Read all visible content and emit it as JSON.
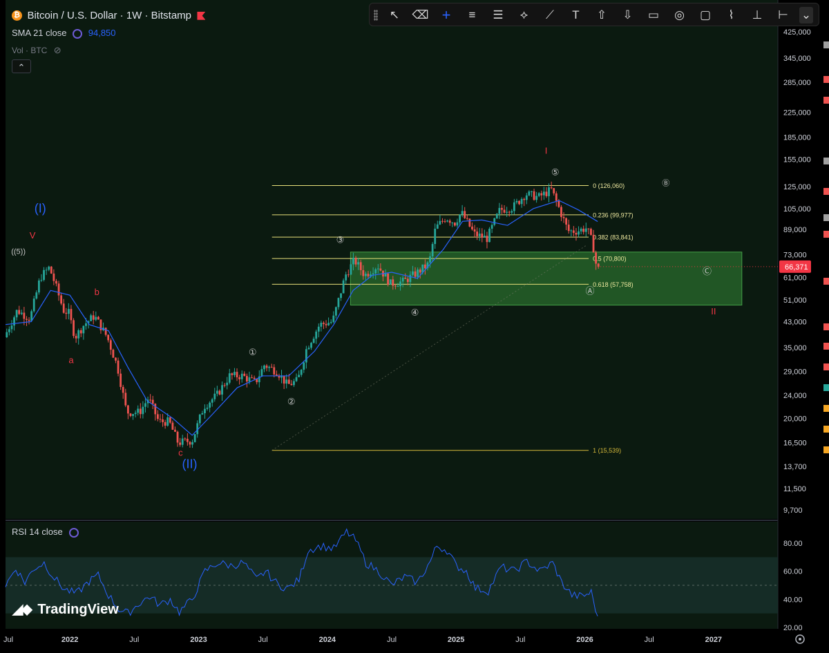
{
  "header": {
    "symbol_title": "Bitcoin / U.S. Dollar · 1W · Bitstamp",
    "sma_label": "SMA 21 close",
    "sma_value": "94,850",
    "vol_label": "Vol · BTC",
    "collapse_glyph": "⌃"
  },
  "toolbar": {
    "tools": [
      {
        "name": "cursor",
        "glyph": "↖"
      },
      {
        "name": "eraser",
        "glyph": "⌫"
      },
      {
        "name": "crosshair",
        "glyph": "+"
      },
      {
        "name": "parallel-channel",
        "glyph": "≡"
      },
      {
        "name": "fib-retracement",
        "glyph": "☰"
      },
      {
        "name": "pattern",
        "glyph": "⟡"
      },
      {
        "name": "trend-line",
        "glyph": "⟋"
      },
      {
        "name": "text",
        "glyph": "T"
      },
      {
        "name": "arrow-up",
        "glyph": "⇧"
      },
      {
        "name": "arrow-down",
        "glyph": "⇩"
      },
      {
        "name": "callout",
        "glyph": "▭"
      },
      {
        "name": "circle",
        "glyph": "◎"
      },
      {
        "name": "rectangle",
        "glyph": "▢"
      },
      {
        "name": "path",
        "glyph": "⌇"
      },
      {
        "name": "price-range",
        "glyph": "⊥"
      },
      {
        "name": "date-range",
        "glyph": "⊢"
      },
      {
        "name": "more",
        "glyph": "⌄"
      }
    ]
  },
  "colors": {
    "bg": "#0b1a10",
    "up": "#26a69a",
    "down": "#ef5350",
    "sma": "#2962ff",
    "fib": "#e8e07a",
    "fib_last": "#d4b83a",
    "zone": "#2e7d32",
    "wave_red": "#f23645",
    "wave_blue": "#2962ff",
    "rsi": "#2962ff",
    "current_price": "#f23645"
  },
  "chart_data": {
    "type": "candlestick",
    "title": "Bitcoin / U.S. Dollar · 1W · Bitstamp",
    "y_scale": "log",
    "y_axis_ticks": [
      425000,
      345000,
      285000,
      225000,
      185000,
      155000,
      125000,
      105000,
      89000,
      73000,
      61000,
      51000,
      43000,
      35000,
      29000,
      24000,
      20000,
      16500,
      13700,
      11500,
      9700
    ],
    "y_axis_labels": [
      "425,000",
      "345,000",
      "285,000",
      "225,000",
      "185,000",
      "155,000",
      "125,000",
      "105,000",
      "89,000",
      "73,000",
      "61,000",
      "51,000",
      "43,000",
      "35,000",
      "29,000",
      "24,000",
      "20,000",
      "16,500",
      "13,700",
      "11,500",
      "9,700"
    ],
    "x_axis_labels": [
      "Jul",
      "2022",
      "Jul",
      "2023",
      "Jul",
      "2024",
      "Jul",
      "2025",
      "Jul",
      "2026",
      "Jul",
      "2027"
    ],
    "x_range": [
      2021.5,
      2027.5
    ],
    "current_price": 66371,
    "current_price_label": "66,371",
    "price_path": [
      [
        2021.5,
        38000
      ],
      [
        2021.6,
        47000
      ],
      [
        2021.7,
        44000
      ],
      [
        2021.78,
        61000
      ],
      [
        2021.85,
        66000
      ],
      [
        2021.9,
        57000
      ],
      [
        2021.96,
        47000
      ],
      [
        2022.0,
        46000
      ],
      [
        2022.05,
        38000
      ],
      [
        2022.12,
        42000
      ],
      [
        2022.2,
        45000
      ],
      [
        2022.3,
        38000
      ],
      [
        2022.38,
        30000
      ],
      [
        2022.45,
        21000
      ],
      [
        2022.55,
        21000
      ],
      [
        2022.62,
        23500
      ],
      [
        2022.7,
        19500
      ],
      [
        2022.78,
        19500
      ],
      [
        2022.85,
        16500
      ],
      [
        2022.96,
        16800
      ],
      [
        2023.05,
        22000
      ],
      [
        2023.15,
        24000
      ],
      [
        2023.25,
        28000
      ],
      [
        2023.35,
        28000
      ],
      [
        2023.45,
        26500
      ],
      [
        2023.52,
        30500
      ],
      [
        2023.62,
        29000
      ],
      [
        2023.7,
        26000
      ],
      [
        2023.78,
        27000
      ],
      [
        2023.85,
        35000
      ],
      [
        2023.95,
        42000
      ],
      [
        2024.05,
        43000
      ],
      [
        2024.15,
        62000
      ],
      [
        2024.22,
        70000
      ],
      [
        2024.3,
        62000
      ],
      [
        2024.4,
        67000
      ],
      [
        2024.5,
        58000
      ],
      [
        2024.6,
        59000
      ],
      [
        2024.7,
        63000
      ],
      [
        2024.8,
        68000
      ],
      [
        2024.85,
        90000
      ],
      [
        2024.93,
        98000
      ],
      [
        2025.0,
        94000
      ],
      [
        2025.05,
        102000
      ],
      [
        2025.15,
        86000
      ],
      [
        2025.25,
        83000
      ],
      [
        2025.35,
        104000
      ],
      [
        2025.45,
        106000
      ],
      [
        2025.55,
        118000
      ],
      [
        2025.65,
        115000
      ],
      [
        2025.75,
        122000
      ],
      [
        2025.8,
        108000
      ],
      [
        2025.88,
        88000
      ],
      [
        2025.95,
        88000
      ],
      [
        2026.02,
        90000
      ],
      [
        2026.05,
        85000
      ],
      [
        2026.08,
        76000
      ],
      [
        2026.1,
        66371
      ]
    ],
    "sma21_path": [
      [
        2021.5,
        42000
      ],
      [
        2021.7,
        43000
      ],
      [
        2021.85,
        55000
      ],
      [
        2022.0,
        53000
      ],
      [
        2022.15,
        42000
      ],
      [
        2022.3,
        40000
      ],
      [
        2022.45,
        30000
      ],
      [
        2022.6,
        23000
      ],
      [
        2022.8,
        20000
      ],
      [
        2022.95,
        17500
      ],
      [
        2023.1,
        20500
      ],
      [
        2023.3,
        25500
      ],
      [
        2023.5,
        28000
      ],
      [
        2023.7,
        28000
      ],
      [
        2023.9,
        34000
      ],
      [
        2024.05,
        42000
      ],
      [
        2024.2,
        55000
      ],
      [
        2024.35,
        62000
      ],
      [
        2024.5,
        63500
      ],
      [
        2024.7,
        60500
      ],
      [
        2024.9,
        76000
      ],
      [
        2025.05,
        95000
      ],
      [
        2025.2,
        96000
      ],
      [
        2025.4,
        92000
      ],
      [
        2025.6,
        105000
      ],
      [
        2025.8,
        112000
      ],
      [
        2025.95,
        104000
      ],
      [
        2026.1,
        94850
      ]
    ],
    "fib_levels": [
      {
        "ratio_label": "0 (126,060)",
        "price": 126060
      },
      {
        "ratio_label": "0.236 (99,977)",
        "price": 99977
      },
      {
        "ratio_label": "0.382 (83,841)",
        "price": 83841
      },
      {
        "ratio_label": "0.5 (70,800)",
        "price": 70800
      },
      {
        "ratio_label": "0.618 (57,758)",
        "price": 57758
      },
      {
        "ratio_label": "1 (15,539)",
        "price": 15539
      }
    ],
    "fib_range_x": [
      2023.57,
      2026.03
    ],
    "support_zone": {
      "x": [
        2024.18,
        2027.22
      ],
      "price": [
        49000,
        74500
      ]
    },
    "wave_labels": [
      {
        "text": "(I)",
        "x": 2021.77,
        "price": 102000,
        "color": "blue",
        "size": "lg"
      },
      {
        "text": "V",
        "x": 2021.71,
        "price": 83000,
        "color": "red",
        "size": "md"
      },
      {
        "text": "((5))",
        "x": 2021.6,
        "price": 73500,
        "color": "gray",
        "size": "sm"
      },
      {
        "text": "b",
        "x": 2022.21,
        "price": 53000,
        "color": "red",
        "size": "md"
      },
      {
        "text": "a",
        "x": 2022.01,
        "price": 31000,
        "color": "red",
        "size": "md"
      },
      {
        "text": "c",
        "x": 2022.86,
        "price": 14900,
        "color": "red",
        "size": "md"
      },
      {
        "text": "(II)",
        "x": 2022.93,
        "price": 13500,
        "color": "blue",
        "size": "lg"
      },
      {
        "text": "①",
        "x": 2023.42,
        "price": 33000,
        "color": "gray",
        "size": "md"
      },
      {
        "text": "②",
        "x": 2023.72,
        "price": 22300,
        "color": "gray",
        "size": "md"
      },
      {
        "text": "③",
        "x": 2024.1,
        "price": 80000,
        "color": "gray",
        "size": "md"
      },
      {
        "text": "④",
        "x": 2024.68,
        "price": 45200,
        "color": "gray",
        "size": "md"
      },
      {
        "text": "⑤",
        "x": 2025.77,
        "price": 137000,
        "color": "gray",
        "size": "md"
      },
      {
        "text": "I",
        "x": 2025.7,
        "price": 162000,
        "color": "red",
        "size": "md"
      },
      {
        "text": "Ⓑ",
        "x": 2026.63,
        "price": 126060,
        "color": "gray",
        "size": "sm"
      },
      {
        "text": "Ⓒ",
        "x": 2026.95,
        "price": 62500,
        "color": "gray",
        "size": "md"
      },
      {
        "text": "Ⓐ",
        "x": 2026.04,
        "price": 53500,
        "color": "gray",
        "size": "md"
      },
      {
        "text": "II",
        "x": 2027.0,
        "price": 45500,
        "color": "red",
        "size": "md"
      }
    ],
    "rsi": {
      "label": "RSI 14 close",
      "y_axis_labels": [
        "80.00",
        "60.00",
        "40.00",
        "20.00"
      ],
      "y_ticks": [
        80,
        60,
        40,
        20
      ],
      "band": [
        30,
        70
      ],
      "path": [
        [
          2021.5,
          50
        ],
        [
          2021.58,
          62
        ],
        [
          2021.65,
          52
        ],
        [
          2021.72,
          62
        ],
        [
          2021.8,
          66
        ],
        [
          2021.88,
          55
        ],
        [
          2021.96,
          47
        ],
        [
          2022.05,
          44
        ],
        [
          2022.15,
          53
        ],
        [
          2022.22,
          57
        ],
        [
          2022.3,
          43
        ],
        [
          2022.38,
          33
        ],
        [
          2022.45,
          30
        ],
        [
          2022.55,
          38
        ],
        [
          2022.62,
          42
        ],
        [
          2022.7,
          36
        ],
        [
          2022.78,
          40
        ],
        [
          2022.85,
          31
        ],
        [
          2022.95,
          40
        ],
        [
          2023.05,
          60
        ],
        [
          2023.15,
          66
        ],
        [
          2023.25,
          64
        ],
        [
          2023.35,
          66
        ],
        [
          2023.45,
          54
        ],
        [
          2023.52,
          60
        ],
        [
          2023.62,
          50
        ],
        [
          2023.7,
          48
        ],
        [
          2023.78,
          54
        ],
        [
          2023.85,
          75
        ],
        [
          2023.95,
          78
        ],
        [
          2024.05,
          76
        ],
        [
          2024.15,
          88
        ],
        [
          2024.22,
          82
        ],
        [
          2024.3,
          66
        ],
        [
          2024.4,
          60
        ],
        [
          2024.5,
          50
        ],
        [
          2024.6,
          56
        ],
        [
          2024.7,
          52
        ],
        [
          2024.8,
          67
        ],
        [
          2024.85,
          78
        ],
        [
          2024.93,
          75
        ],
        [
          2025.0,
          64
        ],
        [
          2025.08,
          60
        ],
        [
          2025.15,
          48
        ],
        [
          2025.25,
          46
        ],
        [
          2025.35,
          63
        ],
        [
          2025.45,
          60
        ],
        [
          2025.55,
          67
        ],
        [
          2025.65,
          60
        ],
        [
          2025.75,
          66
        ],
        [
          2025.82,
          52
        ],
        [
          2025.9,
          43
        ],
        [
          2025.98,
          42
        ],
        [
          2026.05,
          45
        ],
        [
          2026.1,
          28
        ]
      ]
    }
  }
}
